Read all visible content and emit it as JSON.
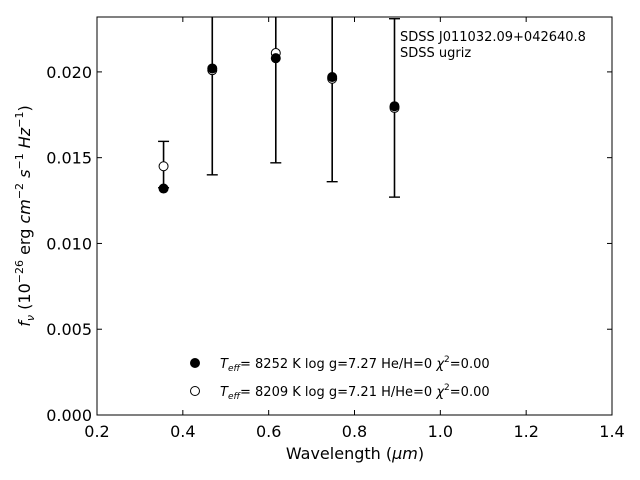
{
  "chart_data": {
    "type": "scatter",
    "title": "",
    "xlabel": "Wavelength (μm)",
    "ylabel": "f_ν (10^-26 erg cm^-2 s^-1 Hz^-1)",
    "xlim": [
      0.2,
      1.4
    ],
    "ylim": [
      0.0,
      0.0232
    ],
    "x_ticks": [
      "0.2",
      "0.4",
      "0.6",
      "0.8",
      "1.0",
      "1.2",
      "1.4"
    ],
    "y_ticks": [
      "0.000",
      "0.005",
      "0.010",
      "0.015",
      "0.020"
    ],
    "grid": false,
    "annotations": [
      "SDSS J011032.09+042640.8",
      "SDSS ugriz"
    ],
    "observed": {
      "x": [
        0.3551,
        0.4686,
        0.6166,
        0.748,
        0.8932
      ],
      "y": [
        0.0146,
        0.0201,
        0.021,
        0.0196,
        0.0179
      ],
      "yerr": [
        0.00135,
        0.0061,
        0.0063,
        0.006,
        0.0052
      ]
    },
    "series": [
      {
        "marker": "filled-circle",
        "teff": "8252 K",
        "logg": "log g=7.27",
        "composition": "He/H=0",
        "chi2": "=0.00",
        "x": [
          0.3551,
          0.4686,
          0.6166,
          0.748,
          0.8932
        ],
        "y": [
          0.0132,
          0.0202,
          0.0208,
          0.0197,
          0.018
        ]
      },
      {
        "marker": "open-circle",
        "teff": "8209 K",
        "logg": "log g=7.21",
        "composition": "H/He=0",
        "chi2": "=0.00",
        "x": [
          0.3551,
          0.4686,
          0.6166,
          0.748,
          0.8932
        ],
        "y": [
          0.0145,
          0.0201,
          0.0211,
          0.0196,
          0.0179
        ]
      }
    ],
    "legend_position": "lower-center",
    "colors": {
      "marker": "#000000",
      "axes": "#000000",
      "background": "#ffffff"
    }
  }
}
